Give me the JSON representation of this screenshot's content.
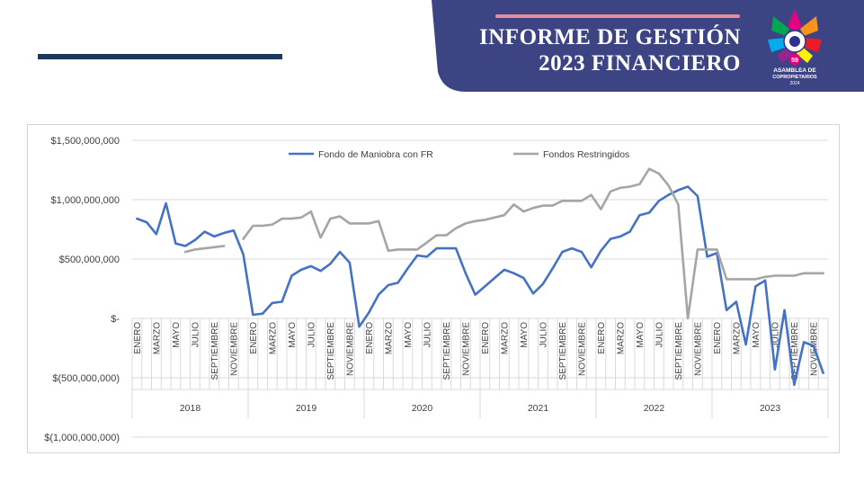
{
  "header": {
    "title_line1": "INFORME DE GESTIÓN",
    "title_line2": "2023 FINANCIERO",
    "banner_color": "#3d4483",
    "accent_color": "#e98ba0"
  },
  "logo": {
    "number": "59",
    "line1": "ASAMBLEA DE",
    "line2": "COPROPIETARIOS",
    "year": "2024"
  },
  "chart_data": {
    "type": "line",
    "title": "",
    "xlabel": "",
    "ylabel": "",
    "ylim": [
      -1000000000,
      1500000000
    ],
    "yticks": [
      1500000000,
      1000000000,
      500000000,
      0,
      -500000000,
      -1000000000
    ],
    "ytick_labels": [
      "$1,500,000,000",
      "$1,000,000,000",
      "$500,000,000",
      "$-",
      "$(500,000,000)",
      "$(1,000,000,000)"
    ],
    "grid": true,
    "legend_position": "top",
    "years": [
      "2018",
      "2019",
      "2020",
      "2021",
      "2022",
      "2023"
    ],
    "month_labels": [
      "ENERO",
      "MARZO",
      "MAYO",
      "JULIO",
      "SEPTIEMBRE",
      "NOVIEMBRE"
    ],
    "series": [
      {
        "name": "Fondo de Maniobra con FR",
        "color": "#4472c4",
        "values": [
          840000000,
          810000000,
          710000000,
          970000000,
          630000000,
          610000000,
          660000000,
          730000000,
          690000000,
          720000000,
          740000000,
          540000000,
          30000000,
          40000000,
          130000000,
          140000000,
          360000000,
          410000000,
          440000000,
          400000000,
          460000000,
          560000000,
          470000000,
          -70000000,
          50000000,
          200000000,
          280000000,
          300000000,
          420000000,
          530000000,
          520000000,
          590000000,
          590000000,
          590000000,
          380000000,
          200000000,
          270000000,
          340000000,
          410000000,
          380000000,
          340000000,
          210000000,
          290000000,
          420000000,
          560000000,
          590000000,
          560000000,
          430000000,
          570000000,
          670000000,
          690000000,
          730000000,
          870000000,
          890000000,
          990000000,
          1040000000,
          1080000000,
          1110000000,
          1030000000,
          520000000,
          550000000,
          70000000,
          140000000,
          -220000000,
          270000000,
          320000000,
          -430000000,
          70000000,
          -560000000,
          -200000000,
          -230000000,
          -460000000
        ]
      },
      {
        "name": "Fondos Restringidos",
        "color": "#a5a5a5",
        "values": [
          null,
          null,
          null,
          null,
          null,
          560000000,
          580000000,
          590000000,
          600000000,
          610000000,
          null,
          670000000,
          780000000,
          780000000,
          790000000,
          840000000,
          840000000,
          850000000,
          900000000,
          680000000,
          840000000,
          860000000,
          800000000,
          800000000,
          800000000,
          820000000,
          570000000,
          580000000,
          580000000,
          580000000,
          640000000,
          700000000,
          700000000,
          760000000,
          800000000,
          820000000,
          830000000,
          850000000,
          870000000,
          960000000,
          900000000,
          930000000,
          950000000,
          950000000,
          990000000,
          990000000,
          990000000,
          1040000000,
          920000000,
          1070000000,
          1100000000,
          1110000000,
          1130000000,
          1260000000,
          1220000000,
          1120000000,
          960000000,
          0,
          580000000,
          580000000,
          580000000,
          330000000,
          330000000,
          330000000,
          330000000,
          350000000,
          360000000,
          360000000,
          360000000,
          380000000,
          380000000,
          380000000
        ]
      }
    ]
  }
}
